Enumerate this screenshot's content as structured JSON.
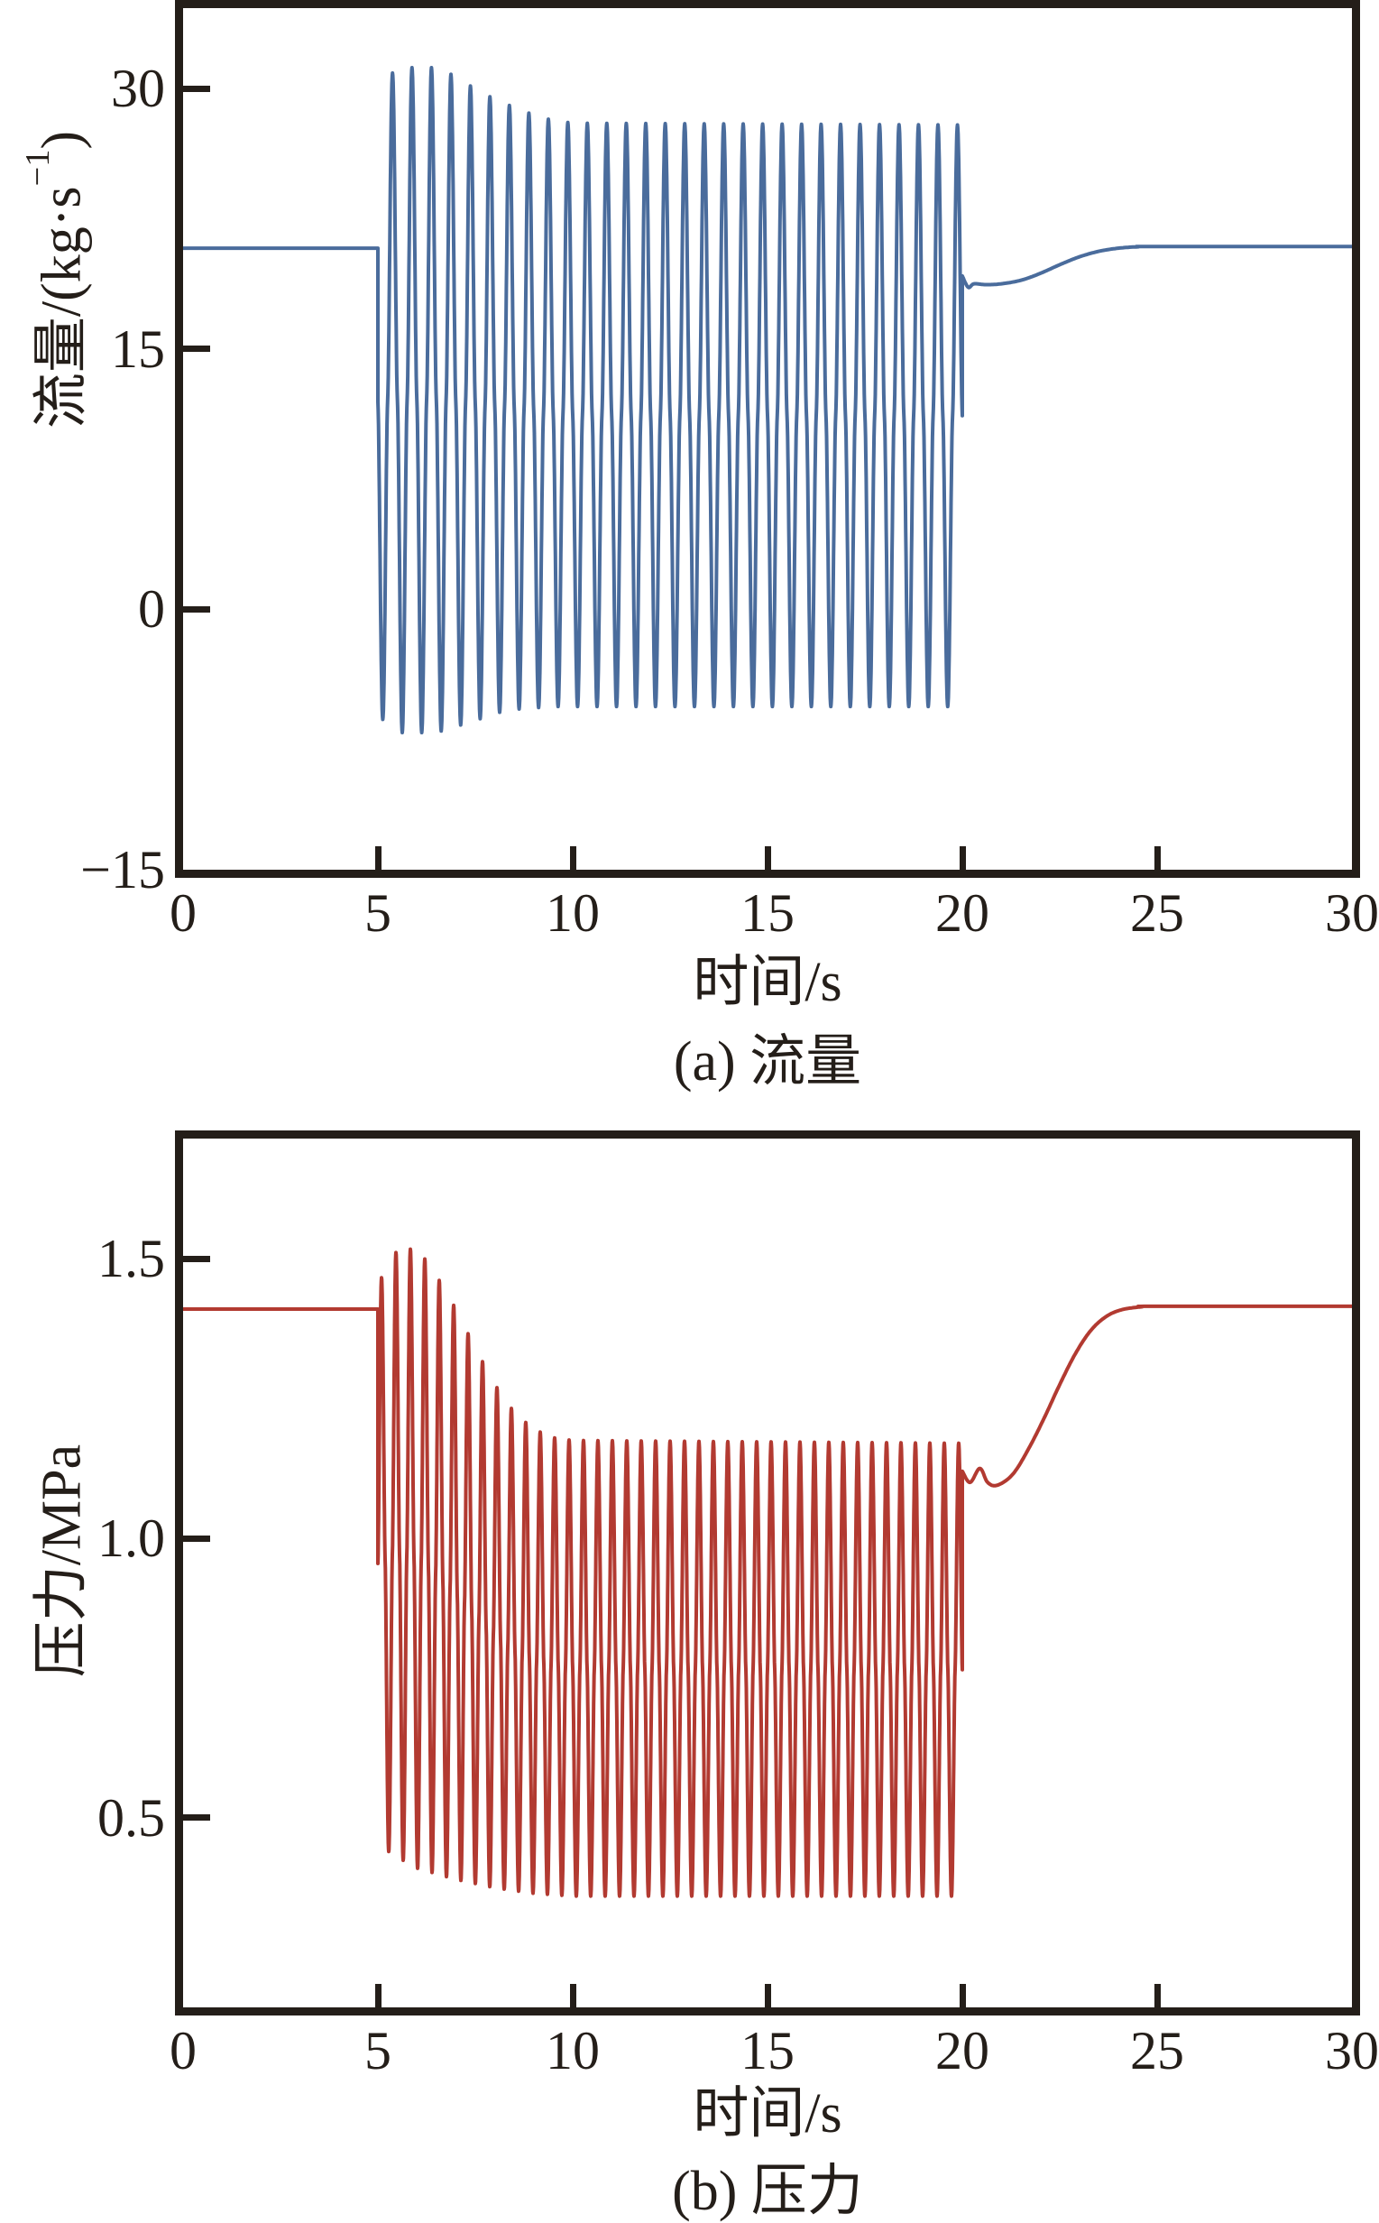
{
  "figure": {
    "charts": [
      {
        "title": "(a) 流量",
        "xlabel": "时间/s",
        "ylabel": {
          "prefix": "流量/(kg·s",
          "sup": "−1",
          "suffix": ")"
        }
      },
      {
        "title": "(b) 压力",
        "xlabel": "时间/s",
        "ylabel": {
          "prefix": "压力/MPa",
          "sup": "",
          "suffix": ""
        }
      }
    ]
  },
  "chart_data": [
    {
      "type": "line",
      "title": "(a) 流量",
      "xlabel": "时间/s",
      "ylabel": "流量/(kg·s−1)",
      "legend": "none",
      "grid": false,
      "color": "#4a6c9c",
      "axis_color": "#241e19",
      "x_range": [
        0,
        30
      ],
      "y_visible_range": [
        -15.0,
        34.63
      ],
      "x_ticks": [
        {
          "v": 0,
          "label": "0"
        },
        {
          "v": 5,
          "label": "5"
        },
        {
          "v": 10,
          "label": "10"
        },
        {
          "v": 15,
          "label": "15"
        },
        {
          "v": 20,
          "label": "20"
        },
        {
          "v": 25,
          "label": "25"
        },
        {
          "v": 30,
          "label": "30"
        }
      ],
      "y_ticks": [
        {
          "v": 30,
          "label": "30"
        },
        {
          "v": 15,
          "label": "15"
        },
        {
          "v": 0,
          "label": "0"
        },
        {
          "v": -15,
          "label": "−15"
        }
      ],
      "signal": {
        "units": "kg·s−1 vs s",
        "baseline_value": 20.8,
        "osc_start_s": 5.0,
        "osc_end_s": 20.0,
        "osc_freq_hz": 2.0,
        "first_swing": "down",
        "peak_sharpness": 1.6,
        "upper_envelope": [
          [
            5.1,
            30.2
          ],
          [
            5.5,
            31.2
          ],
          [
            6.6,
            31.2
          ],
          [
            7.1,
            30.5
          ],
          [
            7.8,
            29.6
          ],
          [
            8.5,
            28.9
          ],
          [
            9.2,
            28.3
          ],
          [
            10.0,
            28.0
          ],
          [
            20.0,
            27.9
          ]
        ],
        "lower_envelope": [
          [
            5.1,
            -6.3
          ],
          [
            5.6,
            -7.1
          ],
          [
            6.5,
            -7.1
          ],
          [
            7.5,
            -6.4
          ],
          [
            8.3,
            -5.8
          ],
          [
            9.5,
            -5.6
          ],
          [
            20.0,
            -5.6
          ]
        ],
        "recovery": [
          [
            20.0,
            19.2
          ],
          [
            20.15,
            18.55
          ],
          [
            20.3,
            18.75
          ],
          [
            20.6,
            18.7
          ],
          [
            21.0,
            18.75
          ],
          [
            21.5,
            18.95
          ],
          [
            22.0,
            19.35
          ],
          [
            22.5,
            19.85
          ],
          [
            23.0,
            20.3
          ],
          [
            23.5,
            20.62
          ],
          [
            24.0,
            20.8
          ],
          [
            24.5,
            20.88
          ],
          [
            25.0,
            20.9
          ],
          [
            30.0,
            20.9
          ]
        ]
      }
    },
    {
      "type": "line",
      "title": "(b) 压力",
      "xlabel": "时间/s",
      "ylabel": "压力/MPa",
      "legend": "none",
      "grid": false,
      "color": "#b23a31",
      "axis_color": "#241e19",
      "x_range": [
        0,
        30
      ],
      "y_visible_range": [
        0.161,
        1.715
      ],
      "x_ticks": [
        {
          "v": 0,
          "label": "0"
        },
        {
          "v": 5,
          "label": "5"
        },
        {
          "v": 10,
          "label": "10"
        },
        {
          "v": 15,
          "label": "15"
        },
        {
          "v": 20,
          "label": "20"
        },
        {
          "v": 25,
          "label": "25"
        },
        {
          "v": 30,
          "label": "30"
        }
      ],
      "y_ticks": [
        {
          "v": 1.5,
          "label": "1.5"
        },
        {
          "v": 1.0,
          "label": "1.0"
        },
        {
          "v": 0.5,
          "label": "0.5"
        }
      ],
      "signal": {
        "units": "MPa vs s",
        "baseline_value": 1.41,
        "osc_start_s": 5.0,
        "osc_end_s": 20.0,
        "osc_freq_hz": 2.7,
        "first_swing": "up",
        "peak_sharpness": 1.5,
        "upper_envelope": [
          [
            5.05,
            1.46
          ],
          [
            5.4,
            1.51
          ],
          [
            6.0,
            1.52
          ],
          [
            6.5,
            1.47
          ],
          [
            7.0,
            1.41
          ],
          [
            7.5,
            1.34
          ],
          [
            8.0,
            1.275
          ],
          [
            8.5,
            1.225
          ],
          [
            9.0,
            1.195
          ],
          [
            9.5,
            1.18
          ],
          [
            10.0,
            1.175
          ],
          [
            20.0,
            1.17
          ]
        ],
        "lower_envelope": [
          [
            5.05,
            0.45
          ],
          [
            5.5,
            0.43
          ],
          [
            6.0,
            0.41
          ],
          [
            7.0,
            0.39
          ],
          [
            8.0,
            0.375
          ],
          [
            9.0,
            0.365
          ],
          [
            10.0,
            0.36
          ],
          [
            20.0,
            0.36
          ]
        ],
        "recovery": [
          [
            20.0,
            1.12
          ],
          [
            20.2,
            1.1
          ],
          [
            20.45,
            1.125
          ],
          [
            20.65,
            1.1
          ],
          [
            20.9,
            1.095
          ],
          [
            21.3,
            1.115
          ],
          [
            21.7,
            1.16
          ],
          [
            22.1,
            1.215
          ],
          [
            22.5,
            1.275
          ],
          [
            22.9,
            1.33
          ],
          [
            23.3,
            1.372
          ],
          [
            23.7,
            1.397
          ],
          [
            24.1,
            1.409
          ],
          [
            24.6,
            1.414
          ],
          [
            25.0,
            1.415
          ],
          [
            30.0,
            1.415
          ]
        ]
      }
    }
  ]
}
